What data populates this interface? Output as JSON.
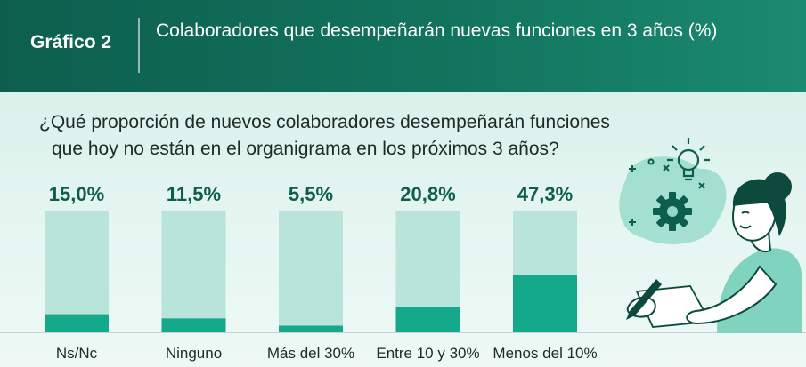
{
  "header": {
    "label": "Gráfico 2",
    "title": "Colaboradores que desempeñarán nuevas funciones en 3 años (%)"
  },
  "question": {
    "line1": "¿Qué proporción de nuevos colaboradores desempeñarán funciones",
    "line2": "que hoy no están en el organigrama en los próximos 3 años?"
  },
  "colors": {
    "header_bg": "#12735d",
    "bar_fill": "#14a98a",
    "bar_track": "#b8e4da",
    "value_text": "#0d5e4d"
  },
  "chart_data": {
    "type": "bar",
    "categories": [
      "Ns/Nc",
      "Ninguno",
      "Más del 30%",
      "Entre 10 y 30%",
      "Menos del 10%"
    ],
    "values": [
      15.0,
      11.5,
      5.5,
      20.8,
      47.3
    ],
    "value_labels": [
      "15,0%",
      "11,5%",
      "5,5%",
      "20,8%",
      "47,3%"
    ],
    "ylim": [
      0,
      100
    ],
    "title": "",
    "xlabel": "",
    "ylabel": "",
    "grid": false,
    "legend": "none"
  },
  "illustration": {
    "icons": [
      "gear-icon",
      "lightbulb-icon",
      "pencil-icon"
    ]
  }
}
